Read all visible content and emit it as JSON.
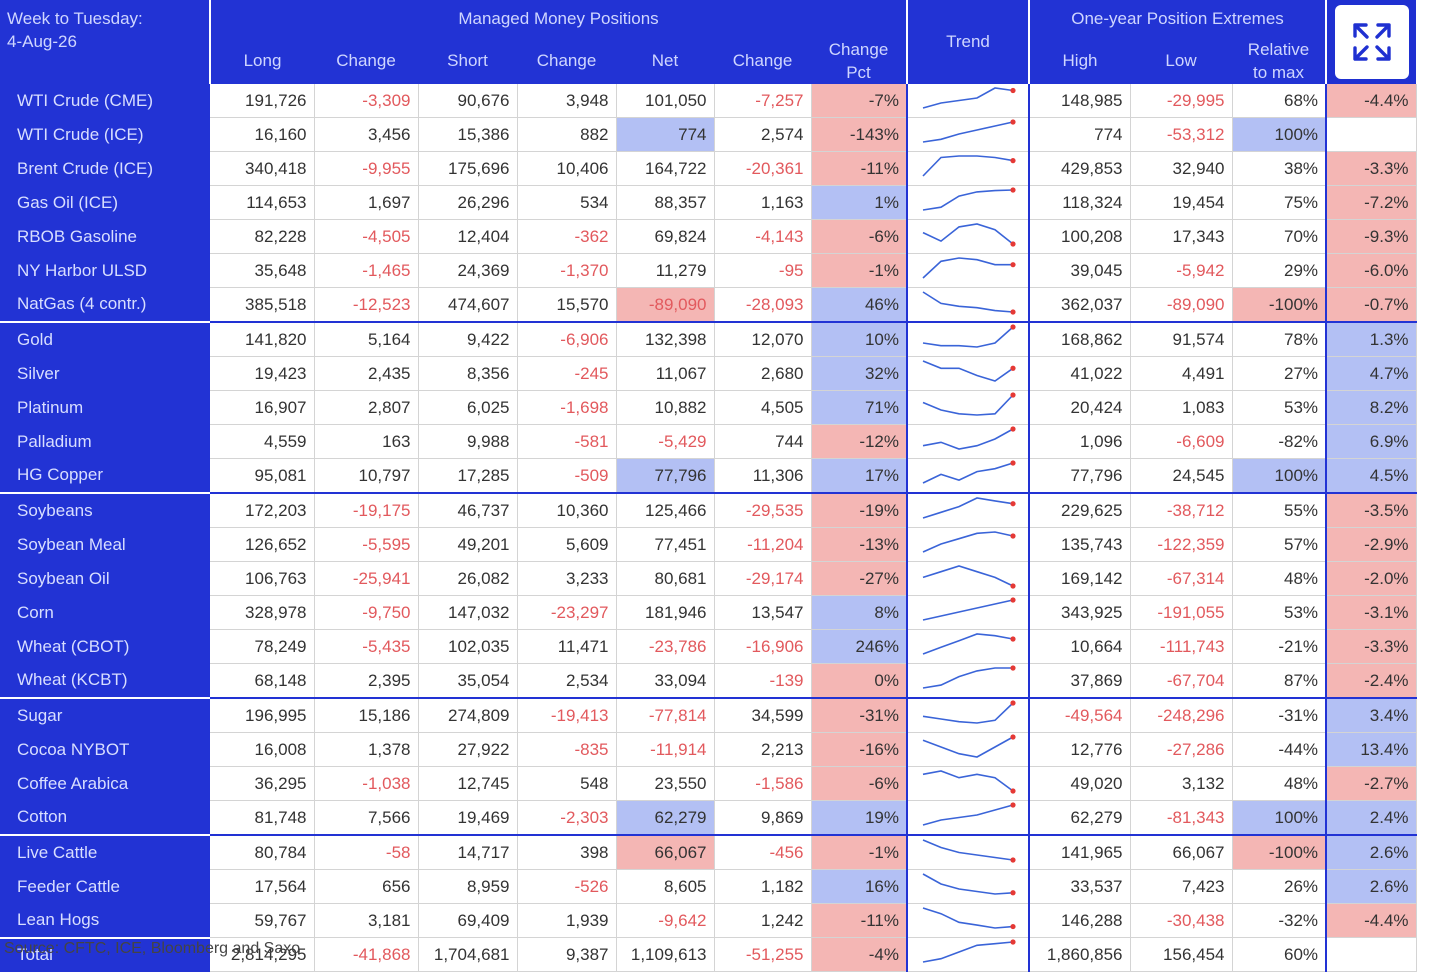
{
  "header": {
    "week_label": "Week to Tuesday:",
    "week_date": "4-Aug-26",
    "managed_money": "Managed Money Positions",
    "extremes": "One-year Position Extremes",
    "columns": {
      "long": "Long",
      "change1": "Change",
      "short": "Short",
      "change2": "Change",
      "net": "Net",
      "change3": "Change",
      "change_pct": "Change Pct",
      "trend": "Trend",
      "high": "High",
      "low": "Low",
      "relative": "Relative to max"
    }
  },
  "expand_icon": "expand-icon",
  "colors": {
    "header_blue": "#2233d4",
    "negative_text": "#e2595d",
    "highlight_red": "#f4b6b4",
    "highlight_blue": "#b3c0f4",
    "trend_line": "#3a64d8",
    "trend_dot": "#e53935"
  },
  "rows": [
    {
      "name": "WTI Crude (CME)",
      "long": "191,726",
      "chg1": "-3,309",
      "short": "90,676",
      "chg2": "3,948",
      "net": "101,050",
      "chg3": "-7,257",
      "pct": "-7%",
      "high": "148,985",
      "low": "-29,995",
      "rel": "68%",
      "last": "-4.4%",
      "pct_hl": "red",
      "last_hl": "red",
      "trend": [
        4,
        5,
        5.5,
        6,
        8,
        7.5
      ]
    },
    {
      "name": "WTI Crude (ICE)",
      "long": "16,160",
      "chg1": "3,456",
      "short": "15,386",
      "chg2": "882",
      "net": "774",
      "chg3": "2,574",
      "pct": "-143%",
      "high": "774",
      "low": "-53,312",
      "rel": "100%",
      "last": "",
      "net_hl": "blue",
      "pct_hl": "red",
      "rel_hl": "blue",
      "trend": [
        1,
        2,
        4,
        5.5,
        7,
        8.5
      ]
    },
    {
      "name": "Brent Crude (ICE)",
      "long": "340,418",
      "chg1": "-9,955",
      "short": "175,696",
      "chg2": "10,406",
      "net": "164,722",
      "chg3": "-20,361",
      "pct": "-11%",
      "high": "429,853",
      "low": "32,940",
      "rel": "38%",
      "last": "-3.3%",
      "pct_hl": "red",
      "last_hl": "red",
      "trend": [
        2,
        8,
        8.5,
        8.5,
        8,
        7
      ]
    },
    {
      "name": "Gas Oil (ICE)",
      "long": "114,653",
      "chg1": "1,697",
      "short": "26,296",
      "chg2": "534",
      "net": "88,357",
      "chg3": "1,163",
      "pct": "1%",
      "high": "118,324",
      "low": "19,454",
      "rel": "75%",
      "last": "-7.2%",
      "pct_hl": "blue",
      "last_hl": "red",
      "trend": [
        1,
        2,
        6,
        7.5,
        8,
        8.2
      ]
    },
    {
      "name": "RBOB Gasoline",
      "long": "82,228",
      "chg1": "-4,505",
      "short": "12,404",
      "chg2": "-362",
      "net": "69,824",
      "chg3": "-4,143",
      "pct": "-6%",
      "high": "100,208",
      "low": "17,343",
      "rel": "70%",
      "last": "-9.3%",
      "pct_hl": "red",
      "last_hl": "red",
      "trend": [
        6,
        3,
        8,
        9,
        7,
        2
      ]
    },
    {
      "name": "NY Harbor ULSD",
      "long": "35,648",
      "chg1": "-1,465",
      "short": "24,369",
      "chg2": "-1,370",
      "net": "11,279",
      "chg3": "-95",
      "pct": "-1%",
      "high": "39,045",
      "low": "-5,942",
      "rel": "29%",
      "last": "-6.0%",
      "pct_hl": "red",
      "last_hl": "red",
      "trend": [
        2,
        7,
        8,
        7.5,
        6,
        6
      ]
    },
    {
      "name": "NatGas (4 contr.)",
      "long": "385,518",
      "chg1": "-12,523",
      "short": "474,607",
      "chg2": "15,570",
      "net": "-89,090",
      "chg3": "-28,093",
      "pct": "46%",
      "high": "362,037",
      "low": "-89,090",
      "rel": "-100%",
      "last": "-0.7%",
      "net_hl": "red",
      "pct_hl": "blue",
      "rel_hl": "red",
      "last_hl": "red",
      "trend": [
        8,
        4,
        3,
        2.5,
        1.5,
        1
      ]
    },
    {
      "name": "Gold",
      "long": "141,820",
      "chg1": "5,164",
      "short": "9,422",
      "chg2": "-6,906",
      "net": "132,398",
      "chg3": "12,070",
      "pct": "10%",
      "high": "168,862",
      "low": "91,574",
      "rel": "78%",
      "last": "1.3%",
      "pct_hl": "blue",
      "last_hl": "blue",
      "group_start": true,
      "trend": [
        3,
        2,
        2,
        1.5,
        3,
        9
      ]
    },
    {
      "name": "Silver",
      "long": "19,423",
      "chg1": "2,435",
      "short": "8,356",
      "chg2": "-245",
      "net": "11,067",
      "chg3": "2,680",
      "pct": "32%",
      "high": "41,022",
      "low": "4,491",
      "rel": "27%",
      "last": "4.7%",
      "pct_hl": "blue",
      "last_hl": "blue",
      "trend": [
        7,
        5,
        5,
        3,
        1.5,
        5
      ]
    },
    {
      "name": "Platinum",
      "long": "16,907",
      "chg1": "2,807",
      "short": "6,025",
      "chg2": "-1,698",
      "net": "10,882",
      "chg3": "4,505",
      "pct": "71%",
      "high": "20,424",
      "low": "1,083",
      "rel": "53%",
      "last": "8.2%",
      "pct_hl": "blue",
      "last_hl": "blue",
      "trend": [
        6,
        3,
        1.5,
        1,
        1.5,
        9
      ]
    },
    {
      "name": "Palladium",
      "long": "4,559",
      "chg1": "163",
      "short": "9,988",
      "chg2": "-581",
      "net": "-5,429",
      "chg3": "744",
      "pct": "-12%",
      "high": "1,096",
      "low": "-6,609",
      "rel": "-82%",
      "last": "6.9%",
      "pct_hl": "red",
      "last_hl": "blue",
      "trend": [
        3,
        4,
        2,
        3,
        5,
        8
      ]
    },
    {
      "name": "HG Copper",
      "long": "95,081",
      "chg1": "10,797",
      "short": "17,285",
      "chg2": "-509",
      "net": "77,796",
      "chg3": "11,306",
      "pct": "17%",
      "high": "77,796",
      "low": "24,545",
      "rel": "100%",
      "last": "4.5%",
      "net_hl": "blue",
      "pct_hl": "blue",
      "rel_hl": "blue",
      "last_hl": "blue",
      "trend": [
        2,
        5,
        3,
        6,
        7,
        9
      ]
    },
    {
      "name": "Soybeans",
      "long": "172,203",
      "chg1": "-19,175",
      "short": "46,737",
      "chg2": "10,360",
      "net": "125,466",
      "chg3": "-29,535",
      "pct": "-19%",
      "high": "229,625",
      "low": "-38,712",
      "rel": "55%",
      "last": "-3.5%",
      "pct_hl": "red",
      "last_hl": "red",
      "group_start": true,
      "trend": [
        1,
        3,
        5,
        8,
        7,
        6
      ]
    },
    {
      "name": "Soybean Meal",
      "long": "126,652",
      "chg1": "-5,595",
      "short": "49,201",
      "chg2": "5,609",
      "net": "77,451",
      "chg3": "-11,204",
      "pct": "-13%",
      "high": "135,743",
      "low": "-122,359",
      "rel": "57%",
      "last": "-2.9%",
      "pct_hl": "red",
      "last_hl": "red",
      "trend": [
        1,
        4,
        6,
        8,
        8.5,
        7
      ]
    },
    {
      "name": "Soybean Oil",
      "long": "106,763",
      "chg1": "-25,941",
      "short": "26,082",
      "chg2": "3,233",
      "net": "80,681",
      "chg3": "-29,174",
      "pct": "-27%",
      "high": "169,142",
      "low": "-67,314",
      "rel": "48%",
      "last": "-2.0%",
      "pct_hl": "red",
      "last_hl": "red",
      "trend": [
        4,
        6,
        8,
        6,
        4,
        1
      ]
    },
    {
      "name": "Corn",
      "long": "328,978",
      "chg1": "-9,750",
      "short": "147,032",
      "chg2": "-23,297",
      "net": "181,946",
      "chg3": "13,547",
      "pct": "8%",
      "high": "343,925",
      "low": "-191,055",
      "rel": "53%",
      "last": "-3.1%",
      "pct_hl": "blue",
      "last_hl": "red",
      "trend": [
        1,
        2,
        3,
        4,
        5,
        6
      ]
    },
    {
      "name": "Wheat (CBOT)",
      "long": "78,249",
      "chg1": "-5,435",
      "short": "102,035",
      "chg2": "11,471",
      "net": "-23,786",
      "chg3": "-16,906",
      "pct": "246%",
      "high": "10,664",
      "low": "-111,743",
      "rel": "-21%",
      "last": "-3.3%",
      "pct_hl": "blue",
      "last_hl": "red",
      "trend": [
        2,
        4,
        6,
        8,
        7.5,
        6.5
      ]
    },
    {
      "name": "Wheat (KCBT)",
      "long": "68,148",
      "chg1": "2,395",
      "short": "35,054",
      "chg2": "2,534",
      "net": "33,094",
      "chg3": "-139",
      "pct": "0%",
      "high": "37,869",
      "low": "-67,704",
      "rel": "87%",
      "last": "-2.4%",
      "pct_hl": "red",
      "last_hl": "red",
      "trend": [
        1,
        2,
        5,
        7,
        8,
        8
      ]
    },
    {
      "name": "Sugar",
      "long": "196,995",
      "chg1": "15,186",
      "short": "274,809",
      "chg2": "-19,413",
      "net": "-77,814",
      "chg3": "34,599",
      "pct": "-31%",
      "high": "-49,564",
      "low": "-248,296",
      "rel": "-31%",
      "last": "3.4%",
      "pct_hl": "red",
      "last_hl": "blue",
      "group_start": true,
      "trend": [
        4,
        3,
        2,
        1.5,
        2.5,
        9
      ]
    },
    {
      "name": "Cocoa NYBOT",
      "long": "16,008",
      "chg1": "1,378",
      "short": "27,922",
      "chg2": "-835",
      "net": "-11,914",
      "chg3": "2,213",
      "pct": "-16%",
      "high": "12,776",
      "low": "-27,286",
      "rel": "-44%",
      "last": "13.4%",
      "pct_hl": "red",
      "last_hl": "blue",
      "trend": [
        7,
        5,
        3,
        2,
        5,
        8
      ]
    },
    {
      "name": "Coffee Arabica",
      "long": "36,295",
      "chg1": "-1,038",
      "short": "12,745",
      "chg2": "548",
      "net": "23,550",
      "chg3": "-1,586",
      "pct": "-6%",
      "high": "49,020",
      "low": "3,132",
      "rel": "48%",
      "last": "-2.7%",
      "pct_hl": "red",
      "last_hl": "red",
      "trend": [
        7,
        8,
        6,
        7,
        6,
        2
      ]
    },
    {
      "name": "Cotton",
      "long": "81,748",
      "chg1": "7,566",
      "short": "19,469",
      "chg2": "-2,303",
      "net": "62,279",
      "chg3": "9,869",
      "pct": "19%",
      "high": "62,279",
      "low": "-81,343",
      "rel": "100%",
      "last": "2.4%",
      "net_hl": "blue",
      "pct_hl": "blue",
      "rel_hl": "blue",
      "last_hl": "blue",
      "trend": [
        1,
        3,
        4,
        5,
        7,
        9
      ]
    },
    {
      "name": "Live Cattle",
      "long": "80,784",
      "chg1": "-58",
      "short": "14,717",
      "chg2": "398",
      "net": "66,067",
      "chg3": "-456",
      "pct": "-1%",
      "high": "141,965",
      "low": "66,067",
      "rel": "-100%",
      "last": "2.6%",
      "net_hl": "red",
      "pct_hl": "red",
      "rel_hl": "red",
      "last_hl": "blue",
      "group_start": true,
      "trend": [
        9,
        6,
        4,
        3,
        2,
        1
      ]
    },
    {
      "name": "Feeder Cattle",
      "long": "17,564",
      "chg1": "656",
      "short": "8,959",
      "chg2": "-526",
      "net": "8,605",
      "chg3": "1,182",
      "pct": "16%",
      "high": "33,537",
      "low": "7,423",
      "rel": "26%",
      "last": "2.6%",
      "pct_hl": "blue",
      "last_hl": "blue",
      "trend": [
        9,
        5,
        3,
        2,
        1,
        1.5
      ]
    },
    {
      "name": "Lean Hogs",
      "long": "59,767",
      "chg1": "3,181",
      "short": "69,409",
      "chg2": "1,939",
      "net": "-9,642",
      "chg3": "1,242",
      "pct": "-11%",
      "high": "146,288",
      "low": "-30,438",
      "rel": "-32%",
      "last": "-4.4%",
      "net_hl": "",
      "pct_hl": "red",
      "last_hl": "red",
      "trend": [
        8,
        6,
        3,
        2,
        1,
        1.5
      ]
    },
    {
      "name": "Total",
      "long": "2,814,295",
      "chg1": "-41,868",
      "short": "1,704,681",
      "chg2": "9,387",
      "net": "1,109,613",
      "chg3": "-51,255",
      "pct": "-4%",
      "high": "1,860,856",
      "low": "156,454",
      "rel": "60%",
      "last": "",
      "pct_hl": "red",
      "total": true,
      "trend": [
        2,
        3,
        5,
        7,
        7.5,
        8
      ]
    }
  ],
  "footer": {
    "source": "Source: CFTC, ICE, Bloomberg and Saxo"
  }
}
